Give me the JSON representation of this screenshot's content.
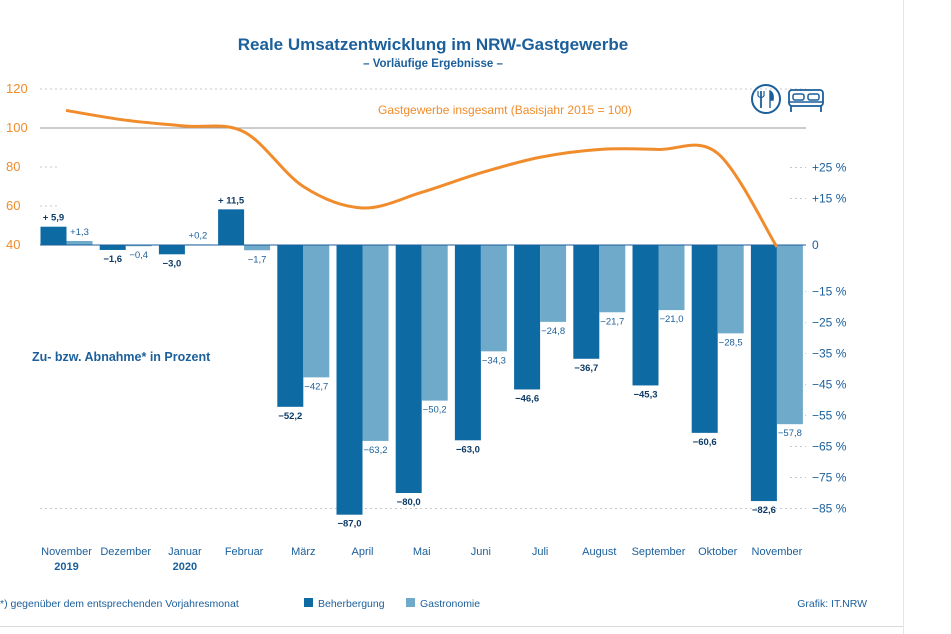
{
  "chart_data": {
    "type": "bar+line",
    "title": "Reale Umsatzentwicklung im NRW-Gastgewerbe",
    "subtitle": "– Vorläufige Ergebnisse –",
    "categories": [
      "November",
      "Dezember",
      "Januar",
      "Februar",
      "März",
      "April",
      "Mai",
      "Juni",
      "Juli",
      "August",
      "September",
      "Oktober",
      "November"
    ],
    "year_labels": [
      {
        "index": 0,
        "label": "2019"
      },
      {
        "index": 2,
        "label": "2020"
      }
    ],
    "series": [
      {
        "name": "Beherbergung",
        "color": "#0e6aa3",
        "values": [
          5.9,
          -1.6,
          -3.0,
          11.5,
          -52.2,
          -87.0,
          -80.0,
          -63.0,
          -46.6,
          -36.7,
          -45.3,
          -60.6,
          -82.6
        ],
        "labels": [
          "+ 5,9",
          "−1,6",
          "−3,0",
          "+ 11,5",
          "−52,2",
          "−87,0",
          "−80,0",
          "−63,0",
          "−46,6",
          "−36,7",
          "−45,3",
          "−60,6",
          "−82,6"
        ]
      },
      {
        "name": "Gastronomie",
        "color": "#6faacb",
        "values": [
          1.3,
          -0.4,
          0.2,
          -1.7,
          -42.7,
          -63.2,
          -50.2,
          -34.3,
          -24.8,
          -21.7,
          -21.0,
          -28.5,
          -57.8
        ],
        "labels": [
          "+1,3",
          "−0,4",
          "+0,2",
          "−1,7",
          "−42,7",
          "−63,2",
          "−50,2",
          "−34,3",
          "−24,8",
          "−21,7",
          "−21,0",
          "−28,5",
          "−57,8"
        ]
      }
    ],
    "line": {
      "name": "Gastgewerbe insgesamt (Basisjahr 2015 = 100)",
      "label": "Gastgewerbe insgesamt (Basisjahr 2015 = 100)",
      "color": "#f08c2c",
      "values": [
        109,
        104,
        101,
        98,
        70,
        59,
        67,
        77,
        85,
        89,
        89,
        87,
        39
      ]
    },
    "left_axis": {
      "ticks": [
        120,
        100,
        80,
        60,
        40
      ],
      "range": [
        40,
        120
      ]
    },
    "right_axis": {
      "ticks": [
        {
          "value": 25,
          "label": "+25 %"
        },
        {
          "value": 15,
          "label": "+15 %"
        },
        {
          "value": 0,
          "label": "0"
        },
        {
          "value": -15,
          "label": "−15 %"
        },
        {
          "value": -25,
          "label": "−25 %"
        },
        {
          "value": -35,
          "label": "−35 %"
        },
        {
          "value": -45,
          "label": "−45 %"
        },
        {
          "value": -55,
          "label": "−55 %"
        },
        {
          "value": -65,
          "label": "−65 %"
        },
        {
          "value": -75,
          "label": "−75 %"
        },
        {
          "value": -85,
          "label": "−85 %"
        }
      ]
    },
    "annotation": "Zu- bzw. Abnahme* in Prozent",
    "footnote": "*)  gegenüber dem entsprechenden Vorjahresmonat",
    "legend": [
      {
        "name": "Beherbergung",
        "color": "#0e6aa3"
      },
      {
        "name": "Gastronomie",
        "color": "#6faacb"
      }
    ],
    "source": "Grafik: IT.NRW",
    "icons": [
      "restaurant-icon",
      "bed-icon"
    ]
  }
}
